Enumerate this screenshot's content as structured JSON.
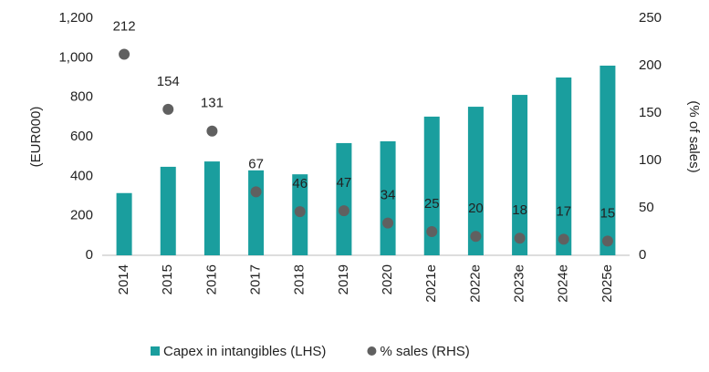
{
  "chart_data": {
    "type": "bar",
    "categories": [
      "2014",
      "2015",
      "2016",
      "2017",
      "2018",
      "2019",
      "2020",
      "2021e",
      "2022e",
      "2023e",
      "2024e",
      "2025e"
    ],
    "ylabel": "(EUR000)",
    "y2label": "(% of sales)",
    "ylim": [
      0,
      1200
    ],
    "yticks": [
      0,
      200,
      400,
      600,
      800,
      1000,
      {
        "value": 1000,
        "label": "1,000"
      },
      {
        "value": 1200,
        "label": "1,200"
      }
    ],
    "y2lim": [
      0,
      250
    ],
    "y2ticks": [
      0,
      50,
      100,
      150,
      200,
      250
    ],
    "legend": "bottom",
    "series": [
      {
        "name": "Capex in intangibles (LHS)",
        "color": "#1a9e9e",
        "type": "bar",
        "values": [
          315,
          448,
          475,
          430,
          410,
          568,
          577,
          702,
          752,
          812,
          900,
          960
        ]
      },
      {
        "name": "% sales (RHS)",
        "color": "#606060",
        "type": "scatter",
        "axis": "y2",
        "values": [
          212,
          154,
          131,
          67,
          46,
          47,
          34,
          25,
          20,
          18,
          17,
          15
        ]
      }
    ]
  }
}
